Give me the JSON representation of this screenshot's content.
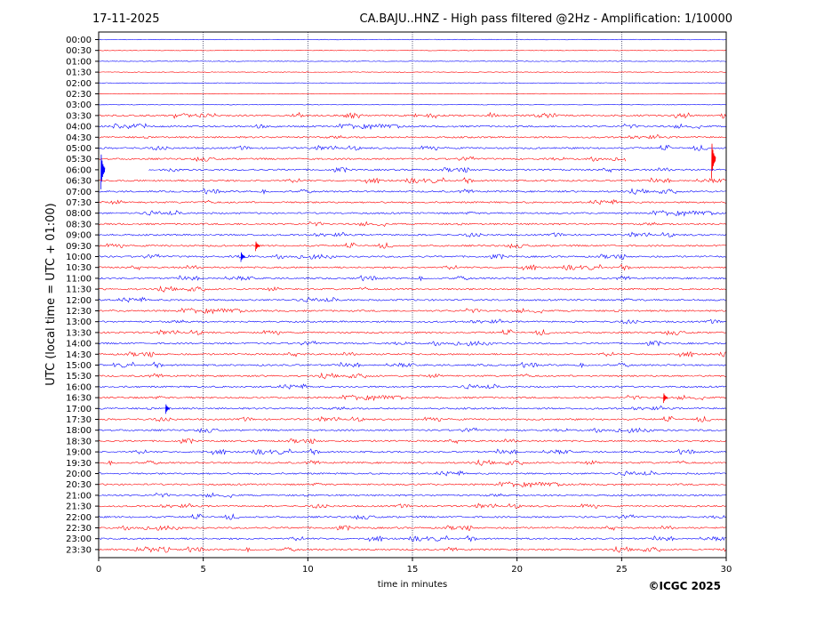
{
  "header": {
    "date": "17-11-2025",
    "title": "CA.BAJU..HNZ - High pass filtered @2Hz - Amplification: 1/10000"
  },
  "footer": {
    "copyright": "©ICGC 2025"
  },
  "chart_data": {
    "type": "line",
    "title": "CA.BAJU..HNZ - High pass filtered @2Hz - Amplification: 1/10000",
    "xlabel": "time in minutes",
    "ylabel": "UTC (local time = UTC + 01:00)",
    "xlim": [
      0,
      30
    ],
    "xticks": [
      0,
      5,
      10,
      15,
      20,
      25,
      30
    ],
    "vertical_grid_at": [
      5,
      10,
      15,
      20,
      25
    ],
    "rows": [
      "00:00",
      "00:30",
      "01:00",
      "01:30",
      "02:00",
      "02:30",
      "03:00",
      "03:30",
      "04:00",
      "04:30",
      "05:00",
      "05:30",
      "06:00",
      "06:30",
      "07:00",
      "07:30",
      "08:00",
      "08:30",
      "09:00",
      "09:30",
      "10:00",
      "10:30",
      "11:00",
      "11:30",
      "12:00",
      "12:30",
      "13:00",
      "13:30",
      "14:00",
      "14:30",
      "15:00",
      "15:30",
      "16:00",
      "16:30",
      "17:00",
      "17:30",
      "18:00",
      "18:30",
      "19:00",
      "19:30",
      "20:00",
      "20:30",
      "21:00",
      "21:30",
      "22:00",
      "22:30",
      "23:00",
      "23:30"
    ],
    "trace_colors": [
      "#0000ff",
      "#ff0000"
    ],
    "series": [
      {
        "row": "05:30",
        "spike_at_min": 29.3
      },
      {
        "row": "06:00",
        "spike_at_min": 0.1
      },
      {
        "row": "09:30",
        "spike_at_min": 7.5
      },
      {
        "row": "10:00",
        "spike_at_min": 6.8
      },
      {
        "row": "17:00",
        "spike_at_min": 3.2
      },
      {
        "row": "16:30",
        "spike_at_min": 27.0
      }
    ],
    "gaps": [
      {
        "row": "05:30",
        "trace_until_min": 25.2
      },
      {
        "row": "06:00",
        "trace_from_min": 2.4
      }
    ]
  }
}
